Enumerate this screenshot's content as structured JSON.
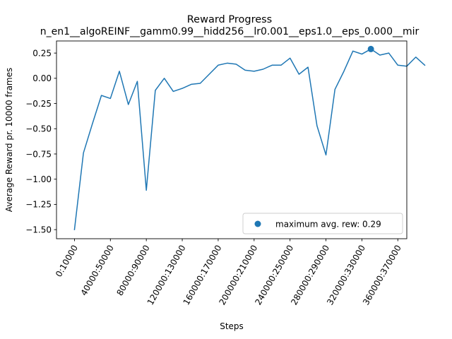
{
  "chart_data": {
    "type": "line",
    "title": "Reward Progress",
    "subtitle": "n_en1__algoREINF__gamm0.99__hidd256__lr0.001__eps1.0__eps_0.000__mir",
    "xlabel": "Steps",
    "ylabel": "Average Reward pr. 10000 frames",
    "xtick_labels": [
      "0:10000",
      "40000:50000",
      "80000:90000",
      "120000:130000",
      "160000:170000",
      "200000:210000",
      "240000:250000",
      "280000:290000",
      "320000:330000",
      "360000:370000"
    ],
    "xtick_positions": [
      0,
      4,
      8,
      12,
      16,
      20,
      24,
      28,
      32,
      36
    ],
    "xlim": [
      -2.0,
      37.0
    ],
    "ylim": [
      -1.59,
      0.37
    ],
    "yticks": [
      0.25,
      0.0,
      -0.25,
      -0.5,
      -0.75,
      -1.0,
      -1.25,
      -1.5
    ],
    "ytick_labels": [
      "0.25",
      "0.00",
      "−0.25",
      "−0.50",
      "−0.75",
      "−1.00",
      "−1.25",
      "−1.50"
    ],
    "grid": false,
    "legend_position": "lower-right",
    "series": [
      {
        "color": "#1f77b4",
        "values": [
          -1.5,
          -0.74,
          -0.45,
          -0.17,
          -0.2,
          0.07,
          -0.26,
          -0.03,
          -1.11,
          -0.12,
          0.0,
          -0.13,
          -0.1,
          -0.06,
          -0.05,
          0.04,
          0.13,
          0.15,
          0.14,
          0.08,
          0.07,
          0.09,
          0.13,
          0.13,
          0.2,
          0.04,
          0.11,
          -0.47,
          -0.76,
          -0.11,
          0.07,
          0.27,
          0.24,
          0.29,
          0.23,
          0.25,
          0.13,
          0.12,
          0.21,
          0.13
        ]
      }
    ],
    "max_marker": {
      "x": 33,
      "y": 0.29,
      "label": "maximum avg. rew: 0.29",
      "color": "#1f77b4"
    }
  }
}
